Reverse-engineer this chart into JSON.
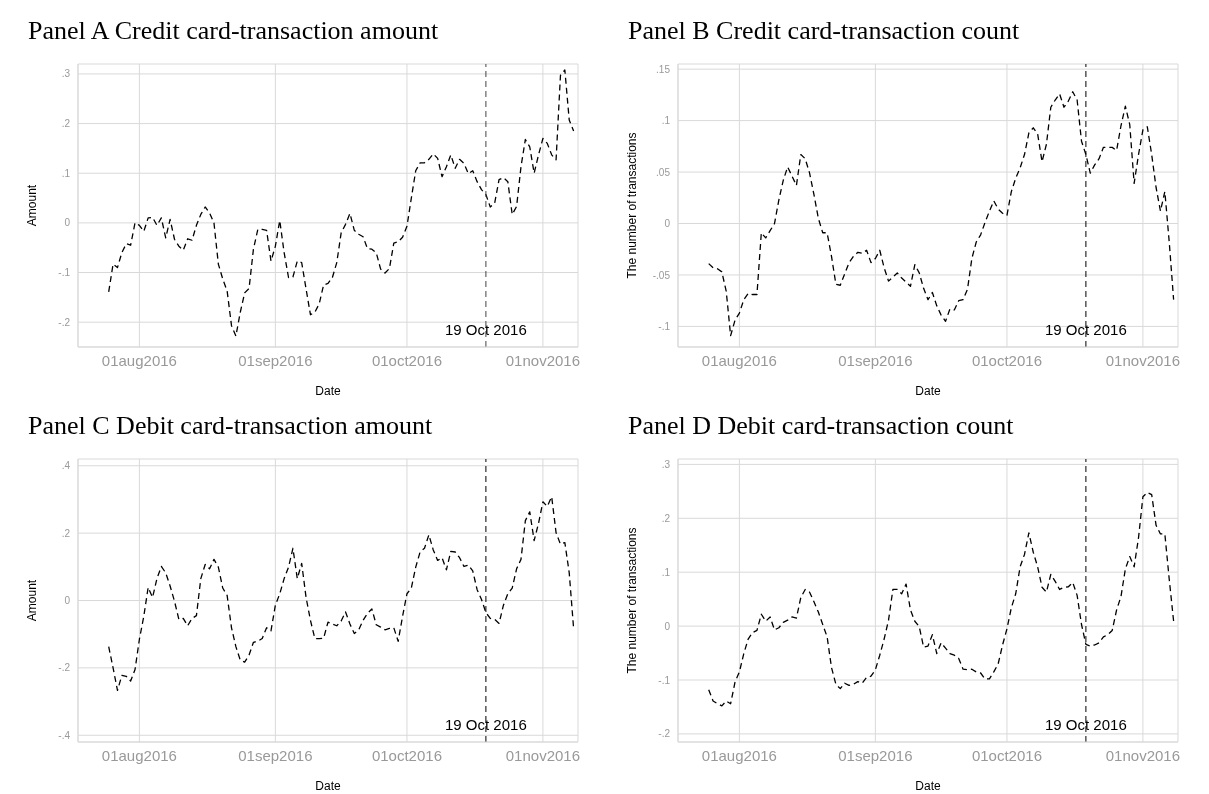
{
  "chart_data": [
    {
      "type": "line",
      "title": "Panel A Credit card-transaction amount",
      "xlabel": "Date",
      "ylabel": "Amount",
      "line_style": "dashed",
      "grid": true,
      "x": [
        "2016-07-25",
        "2016-07-26",
        "2016-07-27",
        "2016-07-28",
        "2016-07-29",
        "2016-07-30",
        "2016-07-31",
        "2016-08-01",
        "2016-08-02",
        "2016-08-03",
        "2016-08-04",
        "2016-08-05",
        "2016-08-06",
        "2016-08-07",
        "2016-08-08",
        "2016-08-09",
        "2016-08-10",
        "2016-08-11",
        "2016-08-12",
        "2016-08-13",
        "2016-08-14",
        "2016-08-15",
        "2016-08-16",
        "2016-08-17",
        "2016-08-18",
        "2016-08-19",
        "2016-08-20",
        "2016-08-21",
        "2016-08-22",
        "2016-08-23",
        "2016-08-24",
        "2016-08-25",
        "2016-08-26",
        "2016-08-27",
        "2016-08-28",
        "2016-08-29",
        "2016-08-30",
        "2016-08-31",
        "2016-09-01",
        "2016-09-02",
        "2016-09-03",
        "2016-09-04",
        "2016-09-05",
        "2016-09-06",
        "2016-09-07",
        "2016-09-08",
        "2016-09-09",
        "2016-09-10",
        "2016-09-11",
        "2016-09-12",
        "2016-09-13",
        "2016-09-14",
        "2016-09-15",
        "2016-09-16",
        "2016-09-17",
        "2016-09-18",
        "2016-09-19",
        "2016-09-20",
        "2016-09-21",
        "2016-09-22",
        "2016-09-23",
        "2016-09-24",
        "2016-09-25",
        "2016-09-26",
        "2016-09-27",
        "2016-09-28",
        "2016-09-29",
        "2016-09-30",
        "2016-10-01",
        "2016-10-02",
        "2016-10-03",
        "2016-10-04",
        "2016-10-05",
        "2016-10-06",
        "2016-10-07",
        "2016-10-08",
        "2016-10-09",
        "2016-10-10",
        "2016-10-11",
        "2016-10-12",
        "2016-10-13",
        "2016-10-14",
        "2016-10-15",
        "2016-10-16",
        "2016-10-17",
        "2016-10-18",
        "2016-10-19",
        "2016-10-20",
        "2016-10-21",
        "2016-10-22",
        "2016-10-23",
        "2016-10-24",
        "2016-10-25",
        "2016-10-26",
        "2016-10-27",
        "2016-10-28",
        "2016-10-29",
        "2016-10-30",
        "2016-10-31",
        "2016-11-01",
        "2016-11-02",
        "2016-11-03",
        "2016-11-04",
        "2016-11-05",
        "2016-11-06",
        "2016-11-07",
        "2016-11-08"
      ],
      "series": [
        {
          "color": "#000000",
          "values": [
            -0.139,
            -0.083,
            -0.09,
            -0.06,
            -0.042,
            -0.045,
            0.0,
            -0.005,
            -0.017,
            0.01,
            0.011,
            -0.005,
            0.01,
            -0.03,
            0.007,
            -0.033,
            -0.047,
            -0.055,
            -0.032,
            -0.035,
            -0.005,
            0.017,
            0.032,
            0.02,
            0.0,
            -0.083,
            -0.113,
            -0.137,
            -0.207,
            -0.228,
            -0.18,
            -0.141,
            -0.132,
            -0.053,
            -0.013,
            -0.013,
            -0.015,
            -0.077,
            -0.047,
            0.005,
            -0.06,
            -0.11,
            -0.109,
            -0.077,
            -0.08,
            -0.133,
            -0.185,
            -0.18,
            -0.163,
            -0.125,
            -0.122,
            -0.11,
            -0.08,
            -0.02,
            -0.003,
            0.019,
            -0.015,
            -0.023,
            -0.028,
            -0.052,
            -0.053,
            -0.06,
            -0.093,
            -0.101,
            -0.092,
            -0.041,
            -0.038,
            -0.029,
            -0.007,
            0.05,
            0.105,
            0.121,
            0.121,
            0.128,
            0.139,
            0.13,
            0.093,
            0.113,
            0.137,
            0.11,
            0.128,
            0.12,
            0.099,
            0.105,
            0.083,
            0.067,
            0.057,
            0.032,
            0.04,
            0.087,
            0.091,
            0.083,
            0.017,
            0.033,
            0.113,
            0.168,
            0.153,
            0.1,
            0.137,
            0.17,
            0.16,
            0.137,
            0.127,
            0.297,
            0.308,
            0.207,
            0.185
          ]
        }
      ],
      "xlim": [
        "2016-07-18",
        "2016-11-09"
      ],
      "xticks": [
        {
          "value": "2016-08-01",
          "label": "01aug2016"
        },
        {
          "value": "2016-09-01",
          "label": "01sep2016"
        },
        {
          "value": "2016-10-01",
          "label": "01oct2016"
        },
        {
          "value": "2016-11-01",
          "label": "01nov2016"
        }
      ],
      "ylim": [
        -0.25,
        0.32
      ],
      "yticks": [
        {
          "value": -0.2,
          "label": "-.2"
        },
        {
          "value": -0.1,
          "label": "-.1"
        },
        {
          "value": 0,
          "label": "0"
        },
        {
          "value": 0.1,
          "label": ".1"
        },
        {
          "value": 0.2,
          "label": ".2"
        },
        {
          "value": 0.3,
          "label": ".3"
        }
      ],
      "ref_lines": [
        {
          "axis": "x",
          "value": "2016-10-19",
          "label": "19 Oct 2016",
          "line_style": "dashed",
          "color": "#444444"
        }
      ]
    },
    {
      "type": "line",
      "title": "Panel B Credit card-transaction count",
      "xlabel": "Date",
      "ylabel": "The number of transactions",
      "line_style": "dashed",
      "grid": true,
      "x": [
        "2016-07-25",
        "2016-07-26",
        "2016-07-27",
        "2016-07-28",
        "2016-07-29",
        "2016-07-30",
        "2016-07-31",
        "2016-08-01",
        "2016-08-02",
        "2016-08-03",
        "2016-08-04",
        "2016-08-05",
        "2016-08-06",
        "2016-08-07",
        "2016-08-08",
        "2016-08-09",
        "2016-08-10",
        "2016-08-11",
        "2016-08-12",
        "2016-08-13",
        "2016-08-14",
        "2016-08-15",
        "2016-08-16",
        "2016-08-17",
        "2016-08-18",
        "2016-08-19",
        "2016-08-20",
        "2016-08-21",
        "2016-08-22",
        "2016-08-23",
        "2016-08-24",
        "2016-08-25",
        "2016-08-26",
        "2016-08-27",
        "2016-08-28",
        "2016-08-29",
        "2016-08-30",
        "2016-08-31",
        "2016-09-01",
        "2016-09-02",
        "2016-09-03",
        "2016-09-04",
        "2016-09-05",
        "2016-09-06",
        "2016-09-07",
        "2016-09-08",
        "2016-09-09",
        "2016-09-10",
        "2016-09-11",
        "2016-09-12",
        "2016-09-13",
        "2016-09-14",
        "2016-09-15",
        "2016-09-16",
        "2016-09-17",
        "2016-09-18",
        "2016-09-19",
        "2016-09-20",
        "2016-09-21",
        "2016-09-22",
        "2016-09-23",
        "2016-09-24",
        "2016-09-25",
        "2016-09-26",
        "2016-09-27",
        "2016-09-28",
        "2016-09-29",
        "2016-09-30",
        "2016-10-01",
        "2016-10-02",
        "2016-10-03",
        "2016-10-04",
        "2016-10-05",
        "2016-10-06",
        "2016-10-07",
        "2016-10-08",
        "2016-10-09",
        "2016-10-10",
        "2016-10-11",
        "2016-10-12",
        "2016-10-13",
        "2016-10-14",
        "2016-10-15",
        "2016-10-16",
        "2016-10-17",
        "2016-10-18",
        "2016-10-19",
        "2016-10-20",
        "2016-10-21",
        "2016-10-22",
        "2016-10-23",
        "2016-10-24",
        "2016-10-25",
        "2016-10-26",
        "2016-10-27",
        "2016-10-28",
        "2016-10-29",
        "2016-10-30",
        "2016-10-31",
        "2016-11-01",
        "2016-11-02",
        "2016-11-03",
        "2016-11-04",
        "2016-11-05",
        "2016-11-06",
        "2016-11-07",
        "2016-11-08"
      ],
      "series": [
        {
          "color": "#000000",
          "values": [
            -0.039,
            -0.043,
            -0.044,
            -0.047,
            -0.066,
            -0.109,
            -0.094,
            -0.087,
            -0.074,
            -0.068,
            -0.069,
            -0.069,
            -0.009,
            -0.014,
            -0.007,
            0.0,
            0.023,
            0.042,
            0.055,
            0.046,
            0.037,
            0.067,
            0.063,
            0.049,
            0.028,
            0.005,
            -0.009,
            -0.009,
            -0.032,
            -0.059,
            -0.06,
            -0.049,
            -0.038,
            -0.032,
            -0.028,
            -0.029,
            -0.026,
            -0.038,
            -0.034,
            -0.026,
            -0.043,
            -0.056,
            -0.052,
            -0.048,
            -0.053,
            -0.057,
            -0.061,
            -0.04,
            -0.048,
            -0.063,
            -0.074,
            -0.067,
            -0.08,
            -0.089,
            -0.095,
            -0.083,
            -0.084,
            -0.075,
            -0.074,
            -0.064,
            -0.034,
            -0.018,
            -0.011,
            0.001,
            0.012,
            0.022,
            0.014,
            0.01,
            0.008,
            0.031,
            0.044,
            0.054,
            0.067,
            0.088,
            0.093,
            0.087,
            0.06,
            0.077,
            0.113,
            0.12,
            0.126,
            0.113,
            0.119,
            0.128,
            0.12,
            0.08,
            0.067,
            0.049,
            0.057,
            0.063,
            0.074,
            0.074,
            0.074,
            0.071,
            0.095,
            0.114,
            0.096,
            0.039,
            0.067,
            0.091,
            0.094,
            0.067,
            0.035,
            0.012,
            0.031,
            -0.018,
            -0.074
          ]
        }
      ],
      "xlim": [
        "2016-07-18",
        "2016-11-09"
      ],
      "xticks": [
        {
          "value": "2016-08-01",
          "label": "01aug2016"
        },
        {
          "value": "2016-09-01",
          "label": "01sep2016"
        },
        {
          "value": "2016-10-01",
          "label": "01oct2016"
        },
        {
          "value": "2016-11-01",
          "label": "01nov2016"
        }
      ],
      "ylim": [
        -0.12,
        0.155
      ],
      "yticks": [
        {
          "value": -0.1,
          "label": "-.1"
        },
        {
          "value": -0.05,
          "label": "-.05"
        },
        {
          "value": 0,
          "label": "0"
        },
        {
          "value": 0.05,
          "label": ".05"
        },
        {
          "value": 0.1,
          "label": ".1"
        },
        {
          "value": 0.15,
          "label": ".15"
        }
      ],
      "ref_lines": [
        {
          "axis": "x",
          "value": "2016-10-19",
          "label": "19 Oct 2016",
          "line_style": "dashed",
          "color": "#000000"
        }
      ]
    },
    {
      "type": "line",
      "title": "Panel C Debit card-transaction amount",
      "xlabel": "Date",
      "ylabel": "Amount",
      "line_style": "dashed",
      "grid": true,
      "x": [
        "2016-07-25",
        "2016-07-26",
        "2016-07-27",
        "2016-07-28",
        "2016-07-29",
        "2016-07-30",
        "2016-07-31",
        "2016-08-01",
        "2016-08-02",
        "2016-08-03",
        "2016-08-04",
        "2016-08-05",
        "2016-08-06",
        "2016-08-07",
        "2016-08-08",
        "2016-08-09",
        "2016-08-10",
        "2016-08-11",
        "2016-08-12",
        "2016-08-13",
        "2016-08-14",
        "2016-08-15",
        "2016-08-16",
        "2016-08-17",
        "2016-08-18",
        "2016-08-19",
        "2016-08-20",
        "2016-08-21",
        "2016-08-22",
        "2016-08-23",
        "2016-08-24",
        "2016-08-25",
        "2016-08-26",
        "2016-08-27",
        "2016-08-28",
        "2016-08-29",
        "2016-08-30",
        "2016-08-31",
        "2016-09-01",
        "2016-09-02",
        "2016-09-03",
        "2016-09-04",
        "2016-09-05",
        "2016-09-06",
        "2016-09-07",
        "2016-09-08",
        "2016-09-09",
        "2016-09-10",
        "2016-09-11",
        "2016-09-12",
        "2016-09-13",
        "2016-09-14",
        "2016-09-15",
        "2016-09-16",
        "2016-09-17",
        "2016-09-18",
        "2016-09-19",
        "2016-09-20",
        "2016-09-21",
        "2016-09-22",
        "2016-09-23",
        "2016-09-24",
        "2016-09-25",
        "2016-09-26",
        "2016-09-27",
        "2016-09-28",
        "2016-09-29",
        "2016-09-30",
        "2016-10-01",
        "2016-10-02",
        "2016-10-03",
        "2016-10-04",
        "2016-10-05",
        "2016-10-06",
        "2016-10-07",
        "2016-10-08",
        "2016-10-09",
        "2016-10-10",
        "2016-10-11",
        "2016-10-12",
        "2016-10-13",
        "2016-10-14",
        "2016-10-15",
        "2016-10-16",
        "2016-10-17",
        "2016-10-18",
        "2016-10-19",
        "2016-10-20",
        "2016-10-21",
        "2016-10-22",
        "2016-10-23",
        "2016-10-24",
        "2016-10-25",
        "2016-10-26",
        "2016-10-27",
        "2016-10-28",
        "2016-10-29",
        "2016-10-30",
        "2016-10-31",
        "2016-11-01",
        "2016-11-02",
        "2016-11-03",
        "2016-11-04",
        "2016-11-05",
        "2016-11-06",
        "2016-11-07",
        "2016-11-08"
      ],
      "series": [
        {
          "color": "#000000",
          "values": [
            -0.137,
            -0.2,
            -0.267,
            -0.222,
            -0.225,
            -0.239,
            -0.205,
            -0.115,
            -0.047,
            0.039,
            0.009,
            0.065,
            0.101,
            0.082,
            0.043,
            -0.002,
            -0.056,
            -0.053,
            -0.075,
            -0.053,
            -0.045,
            0.065,
            0.107,
            0.094,
            0.122,
            0.099,
            0.037,
            0.015,
            -0.081,
            -0.137,
            -0.177,
            -0.183,
            -0.162,
            -0.124,
            -0.121,
            -0.113,
            -0.081,
            -0.09,
            -0.014,
            0.02,
            0.065,
            0.099,
            0.155,
            0.065,
            0.11,
            0.009,
            -0.059,
            -0.113,
            -0.113,
            -0.112,
            -0.064,
            -0.07,
            -0.075,
            -0.061,
            -0.034,
            -0.07,
            -0.098,
            -0.087,
            -0.059,
            -0.038,
            -0.025,
            -0.072,
            -0.079,
            -0.087,
            -0.083,
            -0.081,
            -0.121,
            -0.047,
            0.02,
            0.037,
            0.099,
            0.144,
            0.155,
            0.195,
            0.15,
            0.119,
            0.127,
            0.091,
            0.146,
            0.144,
            0.127,
            0.101,
            0.105,
            0.088,
            0.032,
            0.003,
            -0.036,
            -0.053,
            -0.056,
            -0.068,
            -0.014,
            0.02,
            0.037,
            0.094,
            0.122,
            0.237,
            0.263,
            0.178,
            0.229,
            0.293,
            0.279,
            0.308,
            0.201,
            0.167,
            0.172,
            0.082,
            -0.083
          ]
        }
      ],
      "xlim": [
        "2016-07-18",
        "2016-11-09"
      ],
      "xticks": [
        {
          "value": "2016-08-01",
          "label": "01aug2016"
        },
        {
          "value": "2016-09-01",
          "label": "01sep2016"
        },
        {
          "value": "2016-10-01",
          "label": "01oct2016"
        },
        {
          "value": "2016-11-01",
          "label": "01nov2016"
        }
      ],
      "ylim": [
        -0.42,
        0.42
      ],
      "yticks": [
        {
          "value": -0.4,
          "label": "-.4"
        },
        {
          "value": -0.2,
          "label": "-.2"
        },
        {
          "value": 0,
          "label": "0"
        },
        {
          "value": 0.2,
          "label": ".2"
        },
        {
          "value": 0.4,
          "label": ".4"
        }
      ],
      "ref_lines": [
        {
          "axis": "x",
          "value": "2016-10-19",
          "label": "19 Oct 2016",
          "line_style": "dashed",
          "color": "#000000"
        }
      ]
    },
    {
      "type": "line",
      "title": "Panel D Debit card-transaction count",
      "xlabel": "Date",
      "ylabel": "The number of transactions",
      "line_style": "dashed",
      "grid": true,
      "x": [
        "2016-07-25",
        "2016-07-26",
        "2016-07-27",
        "2016-07-28",
        "2016-07-29",
        "2016-07-30",
        "2016-07-31",
        "2016-08-01",
        "2016-08-02",
        "2016-08-03",
        "2016-08-04",
        "2016-08-05",
        "2016-08-06",
        "2016-08-07",
        "2016-08-08",
        "2016-08-09",
        "2016-08-10",
        "2016-08-11",
        "2016-08-12",
        "2016-08-13",
        "2016-08-14",
        "2016-08-15",
        "2016-08-16",
        "2016-08-17",
        "2016-08-18",
        "2016-08-19",
        "2016-08-20",
        "2016-08-21",
        "2016-08-22",
        "2016-08-23",
        "2016-08-24",
        "2016-08-25",
        "2016-08-26",
        "2016-08-27",
        "2016-08-28",
        "2016-08-29",
        "2016-08-30",
        "2016-08-31",
        "2016-09-01",
        "2016-09-02",
        "2016-09-03",
        "2016-09-04",
        "2016-09-05",
        "2016-09-06",
        "2016-09-07",
        "2016-09-08",
        "2016-09-09",
        "2016-09-10",
        "2016-09-11",
        "2016-09-12",
        "2016-09-13",
        "2016-09-14",
        "2016-09-15",
        "2016-09-16",
        "2016-09-17",
        "2016-09-18",
        "2016-09-19",
        "2016-09-20",
        "2016-09-21",
        "2016-09-22",
        "2016-09-23",
        "2016-09-24",
        "2016-09-25",
        "2016-09-26",
        "2016-09-27",
        "2016-09-28",
        "2016-09-29",
        "2016-09-30",
        "2016-10-01",
        "2016-10-02",
        "2016-10-03",
        "2016-10-04",
        "2016-10-05",
        "2016-10-06",
        "2016-10-07",
        "2016-10-08",
        "2016-10-09",
        "2016-10-10",
        "2016-10-11",
        "2016-10-12",
        "2016-10-13",
        "2016-10-14",
        "2016-10-15",
        "2016-10-16",
        "2016-10-17",
        "2016-10-18",
        "2016-10-19",
        "2016-10-20",
        "2016-10-21",
        "2016-10-22",
        "2016-10-23",
        "2016-10-24",
        "2016-10-25",
        "2016-10-26",
        "2016-10-27",
        "2016-10-28",
        "2016-10-29",
        "2016-10-30",
        "2016-10-31",
        "2016-11-01",
        "2016-11-02",
        "2016-11-03",
        "2016-11-04",
        "2016-11-05",
        "2016-11-06",
        "2016-11-07",
        "2016-11-08"
      ],
      "series": [
        {
          "color": "#000000",
          "values": [
            -0.118,
            -0.139,
            -0.144,
            -0.148,
            -0.139,
            -0.144,
            -0.104,
            -0.085,
            -0.051,
            -0.024,
            -0.012,
            -0.008,
            0.022,
            0.009,
            0.017,
            -0.007,
            -0.003,
            0.007,
            0.011,
            0.017,
            0.015,
            0.053,
            0.068,
            0.063,
            0.045,
            0.026,
            0.003,
            -0.02,
            -0.077,
            -0.108,
            -0.116,
            -0.106,
            -0.11,
            -0.108,
            -0.103,
            -0.106,
            -0.095,
            -0.093,
            -0.081,
            -0.054,
            -0.024,
            0.011,
            0.068,
            0.068,
            0.06,
            0.078,
            0.03,
            0.009,
            -0.001,
            -0.039,
            -0.037,
            -0.016,
            -0.051,
            -0.031,
            -0.041,
            -0.051,
            -0.054,
            -0.06,
            -0.08,
            -0.081,
            -0.08,
            -0.085,
            -0.087,
            -0.098,
            -0.098,
            -0.085,
            -0.07,
            -0.035,
            -0.005,
            0.034,
            0.06,
            0.11,
            0.133,
            0.173,
            0.137,
            0.11,
            0.072,
            0.063,
            0.096,
            0.083,
            0.068,
            0.072,
            0.073,
            0.081,
            0.057,
            0.003,
            -0.034,
            -0.037,
            -0.035,
            -0.031,
            -0.02,
            -0.016,
            -0.008,
            0.03,
            0.055,
            0.106,
            0.129,
            0.11,
            0.164,
            0.24,
            0.248,
            0.244,
            0.187,
            0.171,
            0.171,
            0.087,
            0.009
          ]
        }
      ],
      "xlim": [
        "2016-07-18",
        "2016-11-09"
      ],
      "xticks": [
        {
          "value": "2016-08-01",
          "label": "01aug2016"
        },
        {
          "value": "2016-09-01",
          "label": "01sep2016"
        },
        {
          "value": "2016-10-01",
          "label": "01oct2016"
        },
        {
          "value": "2016-11-01",
          "label": "01nov2016"
        }
      ],
      "ylim": [
        -0.215,
        0.31
      ],
      "yticks": [
        {
          "value": -0.2,
          "label": "-.2"
        },
        {
          "value": -0.1,
          "label": "-.1"
        },
        {
          "value": 0,
          "label": "0"
        },
        {
          "value": 0.1,
          "label": ".1"
        },
        {
          "value": 0.2,
          "label": ".2"
        },
        {
          "value": 0.3,
          "label": ".3"
        }
      ],
      "ref_lines": [
        {
          "axis": "x",
          "value": "2016-10-19",
          "label": "19 Oct 2016",
          "line_style": "dashed",
          "color": "#000000"
        }
      ]
    }
  ]
}
